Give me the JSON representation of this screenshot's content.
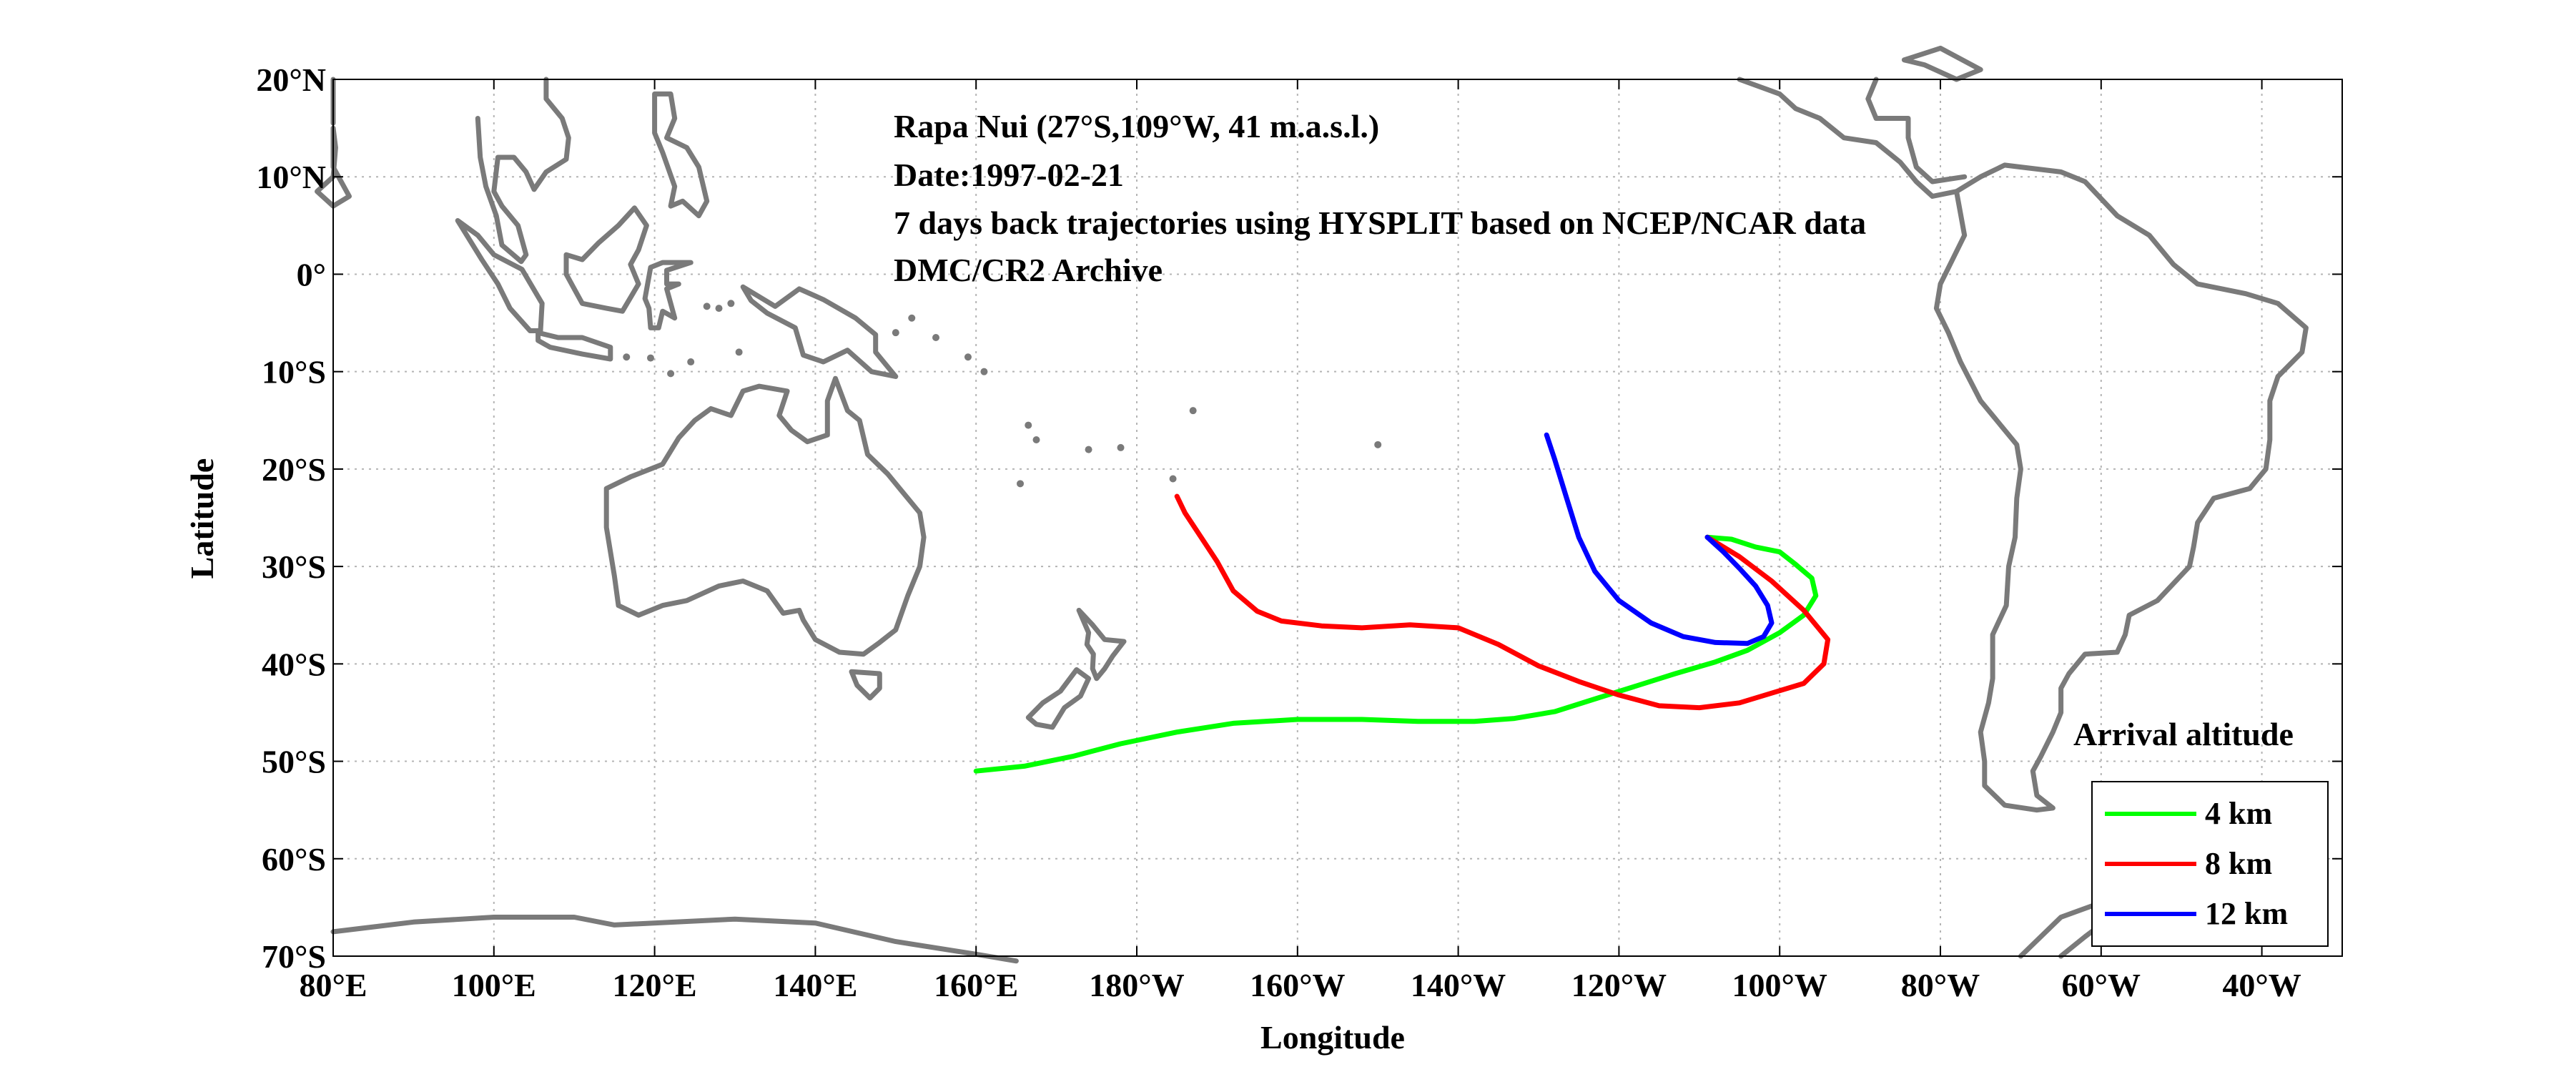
{
  "annotations": {
    "line1": "Rapa Nui (27°S,109°W, 41 m.a.s.l.)",
    "line2": "Date:1997-02-21",
    "line3": "7 days back trajectories using HYSPLIT based on NCEP/NCAR data",
    "line4": "DMC/CR2 Archive"
  },
  "colors": {
    "coast": "#7a7a7a",
    "grid": "#b4b4b4",
    "axis": "#000000"
  },
  "chart_data": {
    "type": "line",
    "xlabel": "Longitude",
    "ylabel": "Latitude",
    "xlim": [
      80,
      330
    ],
    "ylim": [
      -70,
      20
    ],
    "grid": true,
    "legend_placement": "bottom-right",
    "x_ticks": [
      {
        "value": 80,
        "label": "80°E"
      },
      {
        "value": 100,
        "label": "100°E"
      },
      {
        "value": 120,
        "label": "120°E"
      },
      {
        "value": 140,
        "label": "140°E"
      },
      {
        "value": 160,
        "label": "160°E"
      },
      {
        "value": 180,
        "label": "180°W"
      },
      {
        "value": 200,
        "label": "160°W"
      },
      {
        "value": 220,
        "label": "140°W"
      },
      {
        "value": 240,
        "label": "120°W"
      },
      {
        "value": 260,
        "label": "100°W"
      },
      {
        "value": 280,
        "label": "80°W"
      },
      {
        "value": 300,
        "label": "60°W"
      },
      {
        "value": 320,
        "label": "40°W"
      }
    ],
    "y_ticks": [
      {
        "value": 20,
        "label": "20°N"
      },
      {
        "value": 10,
        "label": "10°N"
      },
      {
        "value": 0,
        "label": "0°"
      },
      {
        "value": -10,
        "label": "10°S"
      },
      {
        "value": -20,
        "label": "20°S"
      },
      {
        "value": -30,
        "label": "30°S"
      },
      {
        "value": -40,
        "label": "40°S"
      },
      {
        "value": -50,
        "label": "50°S"
      },
      {
        "value": -60,
        "label": "60°S"
      },
      {
        "value": -70,
        "label": "70°S"
      }
    ],
    "legend_title": "Arrival altitude",
    "series": [
      {
        "name": "4 km",
        "color": "#00ff00",
        "points": [
          [
            251,
            -27
          ],
          [
            254,
            -27.2
          ],
          [
            257,
            -28
          ],
          [
            260,
            -28.5
          ],
          [
            262,
            -29.8
          ],
          [
            264,
            -31.2
          ],
          [
            264.5,
            -33
          ],
          [
            263,
            -35
          ],
          [
            260,
            -36.8
          ],
          [
            256,
            -38.6
          ],
          [
            252,
            -39.8
          ],
          [
            247,
            -41
          ],
          [
            242,
            -42.3
          ],
          [
            237,
            -43.6
          ],
          [
            232,
            -44.9
          ],
          [
            227,
            -45.6
          ],
          [
            222,
            -45.9
          ],
          [
            215,
            -45.9
          ],
          [
            208,
            -45.7
          ],
          [
            200,
            -45.7
          ],
          [
            192,
            -46.1
          ],
          [
            185,
            -47
          ],
          [
            178,
            -48.2
          ],
          [
            172,
            -49.5
          ],
          [
            166,
            -50.5
          ],
          [
            160,
            -51
          ]
        ]
      },
      {
        "name": "8 km",
        "color": "#ff0000",
        "points": [
          [
            251,
            -27
          ],
          [
            255,
            -29
          ],
          [
            259,
            -31.5
          ],
          [
            263,
            -34.5
          ],
          [
            266,
            -37.5
          ],
          [
            265.5,
            -40
          ],
          [
            263,
            -42
          ],
          [
            259,
            -43
          ],
          [
            255,
            -44
          ],
          [
            250,
            -44.5
          ],
          [
            245,
            -44.3
          ],
          [
            240,
            -43.2
          ],
          [
            235,
            -41.8
          ],
          [
            230,
            -40.2
          ],
          [
            225,
            -38
          ],
          [
            220,
            -36.3
          ],
          [
            214,
            -36
          ],
          [
            208,
            -36.3
          ],
          [
            203,
            -36.1
          ],
          [
            198,
            -35.6
          ],
          [
            195,
            -34.6
          ],
          [
            192,
            -32.5
          ],
          [
            190,
            -29.5
          ],
          [
            188,
            -27
          ],
          [
            186,
            -24.5
          ],
          [
            185,
            -22.8
          ]
        ]
      },
      {
        "name": "12 km",
        "color": "#0000ff",
        "points": [
          [
            251,
            -27
          ],
          [
            253,
            -28.5
          ],
          [
            255,
            -30.2
          ],
          [
            257,
            -32
          ],
          [
            258.5,
            -34
          ],
          [
            259,
            -35.8
          ],
          [
            258,
            -37.2
          ],
          [
            256,
            -37.9
          ],
          [
            252,
            -37.8
          ],
          [
            248,
            -37.2
          ],
          [
            244,
            -35.8
          ],
          [
            240,
            -33.5
          ],
          [
            237,
            -30.5
          ],
          [
            235,
            -27
          ],
          [
            233.5,
            -23
          ],
          [
            232,
            -19
          ],
          [
            231,
            -16.5
          ]
        ]
      }
    ]
  }
}
